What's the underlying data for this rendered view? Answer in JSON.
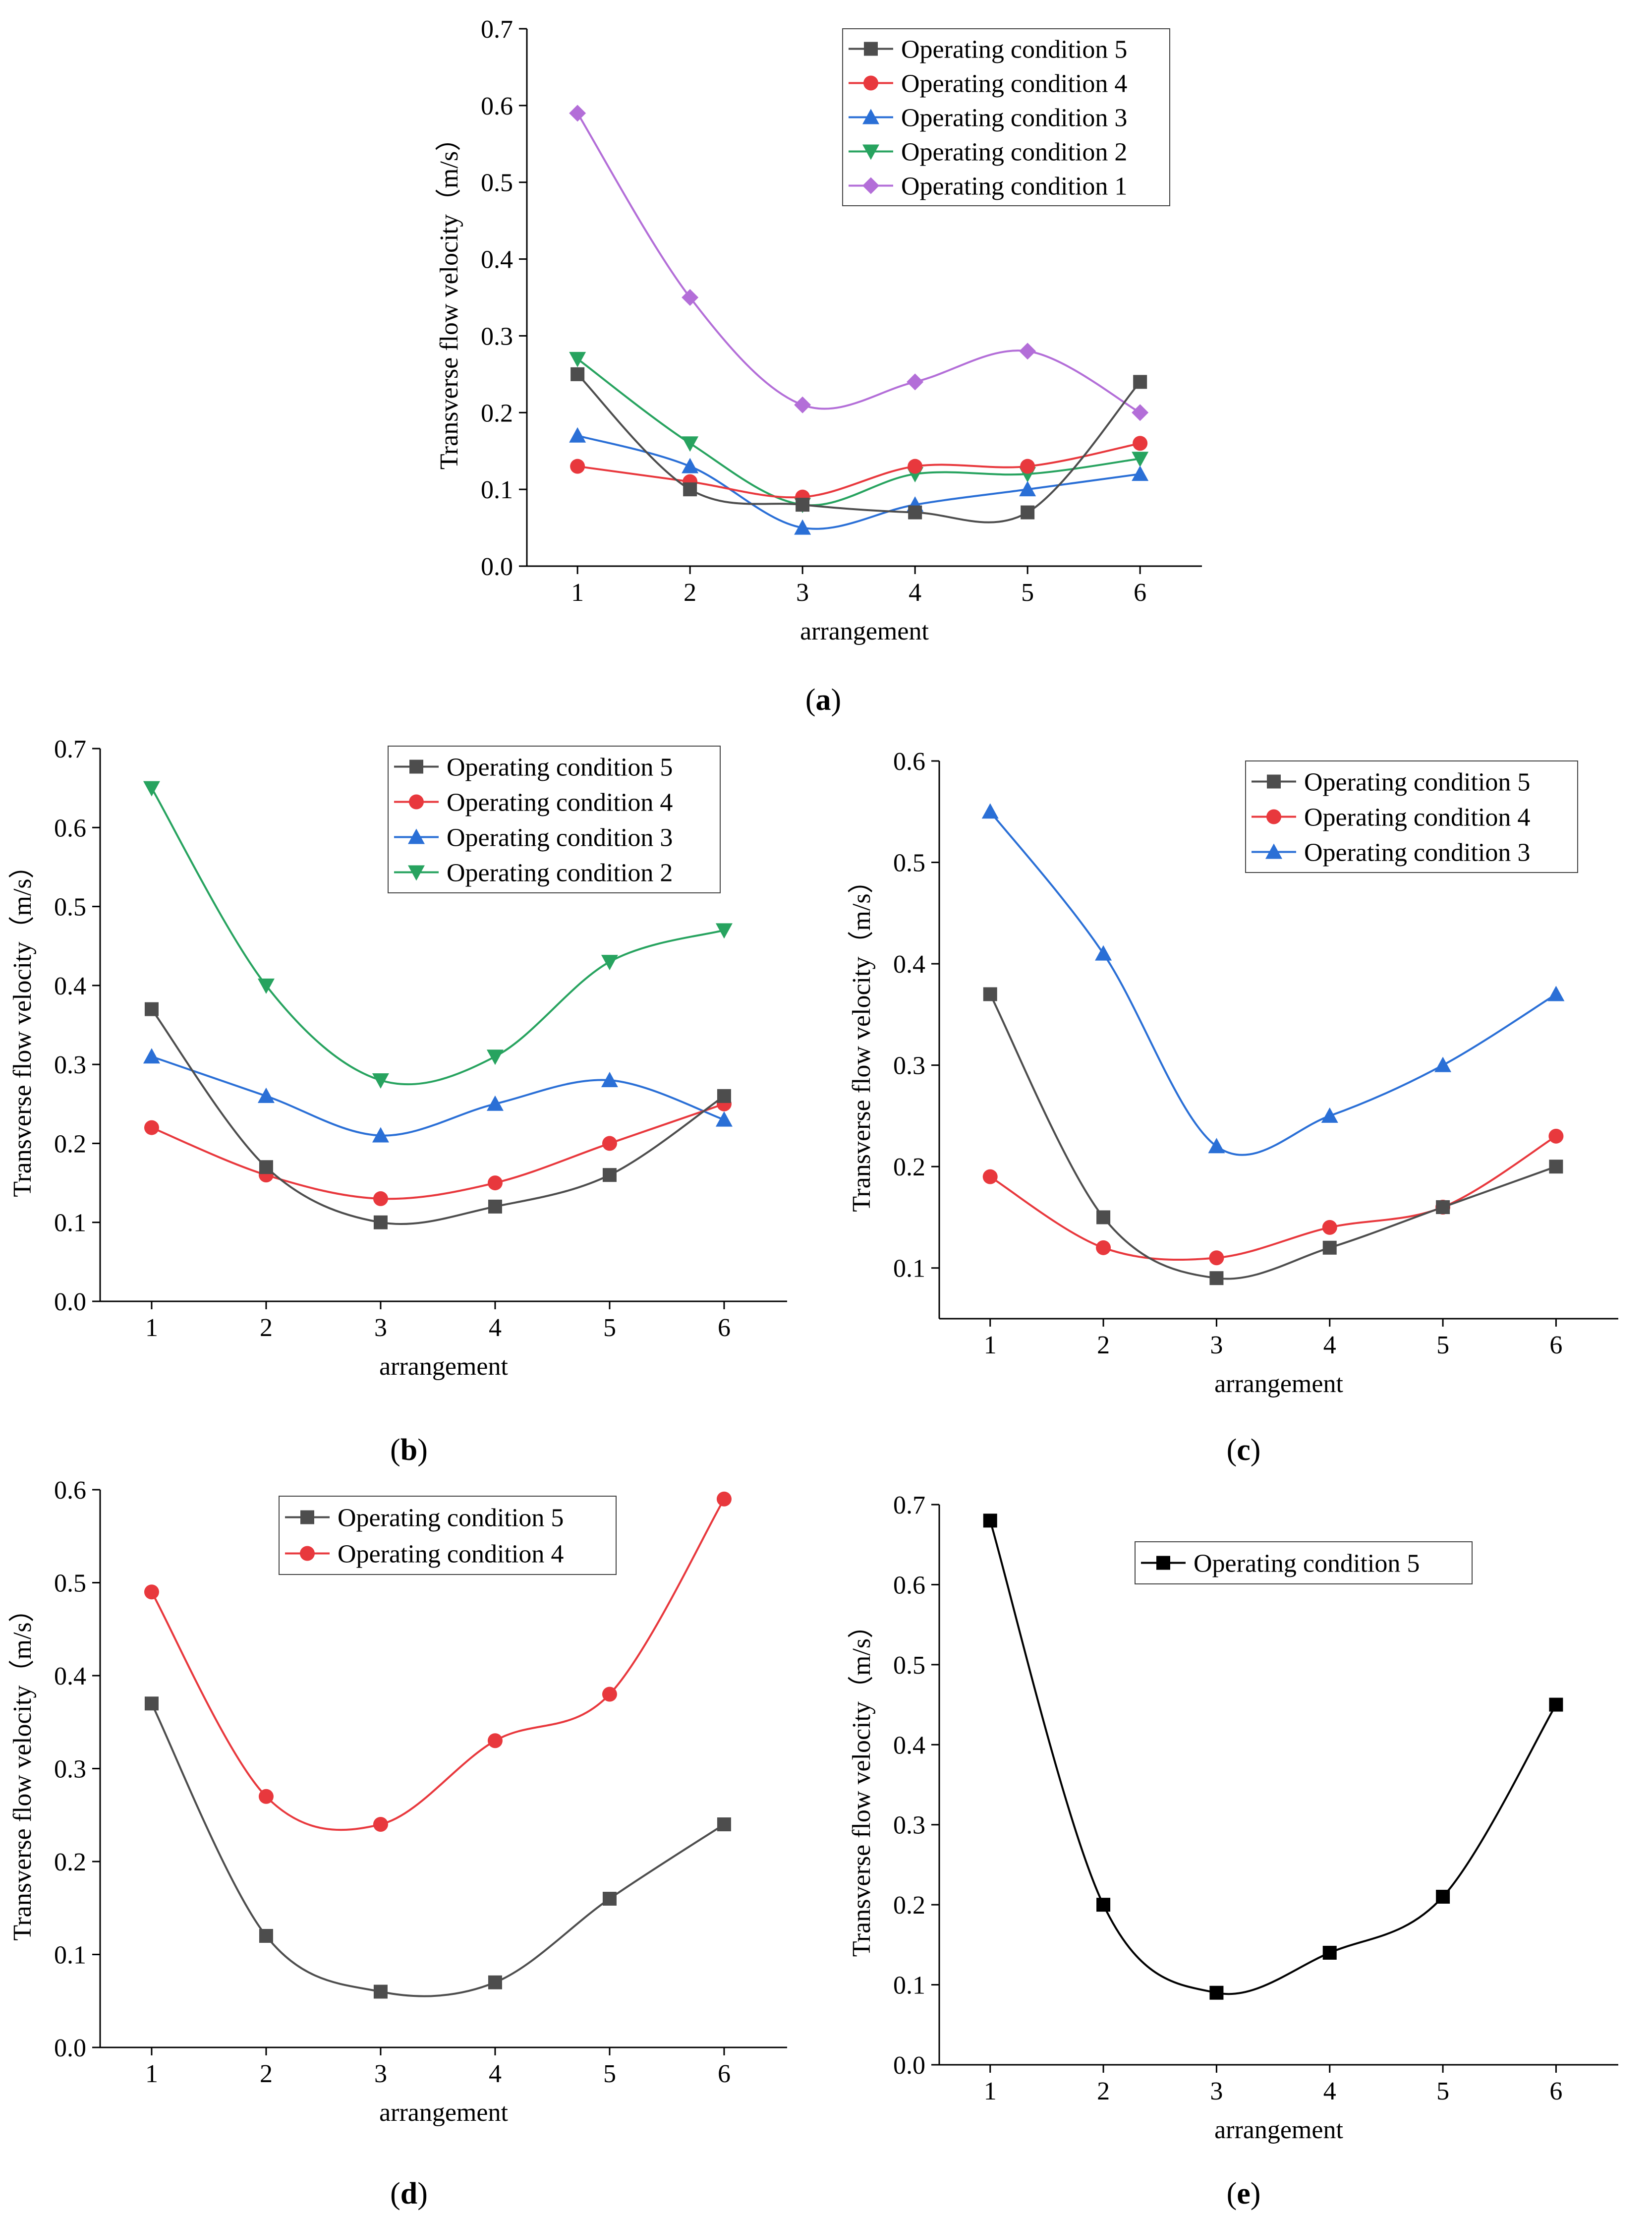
{
  "figure": {
    "panels": [
      {
        "label_prefix": "(",
        "label_letter": "a",
        "label_suffix": ")"
      },
      {
        "label_prefix": "(",
        "label_letter": "b",
        "label_suffix": ")"
      },
      {
        "label_prefix": "(",
        "label_letter": "c",
        "label_suffix": ")"
      },
      {
        "label_prefix": "(",
        "label_letter": "d",
        "label_suffix": ")"
      },
      {
        "label_prefix": "(",
        "label_letter": "e",
        "label_suffix": ")"
      }
    ]
  },
  "colors": {
    "Operating condition 5": "#4d4d4d",
    "Operating condition 4": "#e8383d",
    "Operating condition 3": "#2a6fd6",
    "Operating condition 2": "#27a35f",
    "Operating condition 1": "#b36ed8",
    "Operating condition 5 (e)": "#000000"
  },
  "markers": {
    "Operating condition 5": "square",
    "Operating condition 4": "circle",
    "Operating condition 3": "triangle-up",
    "Operating condition 2": "triangle-down",
    "Operating condition 1": "diamond"
  },
  "chart_data": [
    {
      "type": "line",
      "panel": "a",
      "xlabel": "arrangement",
      "ylabel": "Transverse flow velocity（m/s）",
      "x": [
        1,
        2,
        3,
        4,
        5,
        6
      ],
      "xlim": [
        0.55,
        6.55
      ],
      "ylim": [
        0,
        0.7
      ],
      "yticks": [
        "0.0",
        "0.1",
        "0.2",
        "0.3",
        "0.4",
        "0.5",
        "0.6",
        "0.7"
      ],
      "legend_position": "top-right",
      "series": [
        {
          "name": "Operating condition 5",
          "values": [
            0.25,
            0.1,
            0.08,
            0.07,
            0.07,
            0.24
          ]
        },
        {
          "name": "Operating condition 4",
          "values": [
            0.13,
            0.11,
            0.09,
            0.13,
            0.13,
            0.16
          ]
        },
        {
          "name": "Operating condition 3",
          "values": [
            0.17,
            0.13,
            0.05,
            0.08,
            0.1,
            0.12
          ]
        },
        {
          "name": "Operating condition 2",
          "values": [
            0.27,
            0.16,
            0.08,
            0.12,
            0.12,
            0.14
          ]
        },
        {
          "name": "Operating condition 1",
          "values": [
            0.59,
            0.35,
            0.21,
            0.24,
            0.28,
            0.2
          ]
        }
      ]
    },
    {
      "type": "line",
      "panel": "b",
      "xlabel": "arrangement",
      "ylabel": "Transverse flow velocity（m/s）",
      "x": [
        1,
        2,
        3,
        4,
        5,
        6
      ],
      "xlim": [
        0.55,
        6.55
      ],
      "ylim": [
        0,
        0.7
      ],
      "yticks": [
        "0.0",
        "0.1",
        "0.2",
        "0.3",
        "0.4",
        "0.5",
        "0.6",
        "0.7"
      ],
      "legend_position": "top-right",
      "series": [
        {
          "name": "Operating condition 5",
          "values": [
            0.37,
            0.17,
            0.1,
            0.12,
            0.16,
            0.26
          ]
        },
        {
          "name": "Operating condition 4",
          "values": [
            0.22,
            0.16,
            0.13,
            0.15,
            0.2,
            0.25
          ]
        },
        {
          "name": "Operating condition 3",
          "values": [
            0.31,
            0.26,
            0.21,
            0.25,
            0.28,
            0.23
          ]
        },
        {
          "name": "Operating condition 2",
          "values": [
            0.65,
            0.4,
            0.28,
            0.31,
            0.43,
            0.47
          ]
        }
      ]
    },
    {
      "type": "line",
      "panel": "c",
      "xlabel": "arrangement",
      "ylabel": "Transverse flow velocity（m/s）",
      "x": [
        1,
        2,
        3,
        4,
        5,
        6
      ],
      "xlim": [
        0.55,
        6.55
      ],
      "ylim": [
        0.05,
        0.6
      ],
      "yticks": [
        "0.1",
        "0.2",
        "0.3",
        "0.4",
        "0.5",
        "0.6"
      ],
      "legend_position": "top-right",
      "series": [
        {
          "name": "Operating condition 5",
          "values": [
            0.37,
            0.15,
            0.09,
            0.12,
            0.16,
            0.2
          ]
        },
        {
          "name": "Operating condition 4",
          "values": [
            0.19,
            0.12,
            0.11,
            0.14,
            0.16,
            0.23
          ]
        },
        {
          "name": "Operating condition 3",
          "values": [
            0.55,
            0.41,
            0.22,
            0.25,
            0.3,
            0.37
          ]
        }
      ]
    },
    {
      "type": "line",
      "panel": "d",
      "xlabel": "arrangement",
      "ylabel": "Transverse flow velocity（m/s）",
      "x": [
        1,
        2,
        3,
        4,
        5,
        6
      ],
      "xlim": [
        0.55,
        6.55
      ],
      "ylim": [
        0,
        0.6
      ],
      "yticks": [
        "0.0",
        "0.1",
        "0.2",
        "0.3",
        "0.4",
        "0.5",
        "0.6"
      ],
      "legend_position": "top-center",
      "series": [
        {
          "name": "Operating condition 5",
          "values": [
            0.37,
            0.12,
            0.06,
            0.07,
            0.16,
            0.24
          ]
        },
        {
          "name": "Operating condition 4",
          "values": [
            0.49,
            0.27,
            0.24,
            0.33,
            0.38,
            0.59
          ]
        }
      ]
    },
    {
      "type": "line",
      "panel": "e",
      "xlabel": "arrangement",
      "ylabel": "Transverse flow velocity（m/s）",
      "x": [
        1,
        2,
        3,
        4,
        5,
        6
      ],
      "xlim": [
        0.55,
        6.55
      ],
      "ylim": [
        0,
        0.7
      ],
      "yticks": [
        "0.0",
        "0.1",
        "0.2",
        "0.3",
        "0.4",
        "0.5",
        "0.6",
        "0.7"
      ],
      "legend_position": "top-right",
      "series": [
        {
          "name": "Operating condition 5",
          "color_key": "Operating condition 5 (e)",
          "values": [
            0.68,
            0.2,
            0.09,
            0.14,
            0.21,
            0.45
          ]
        }
      ]
    }
  ]
}
